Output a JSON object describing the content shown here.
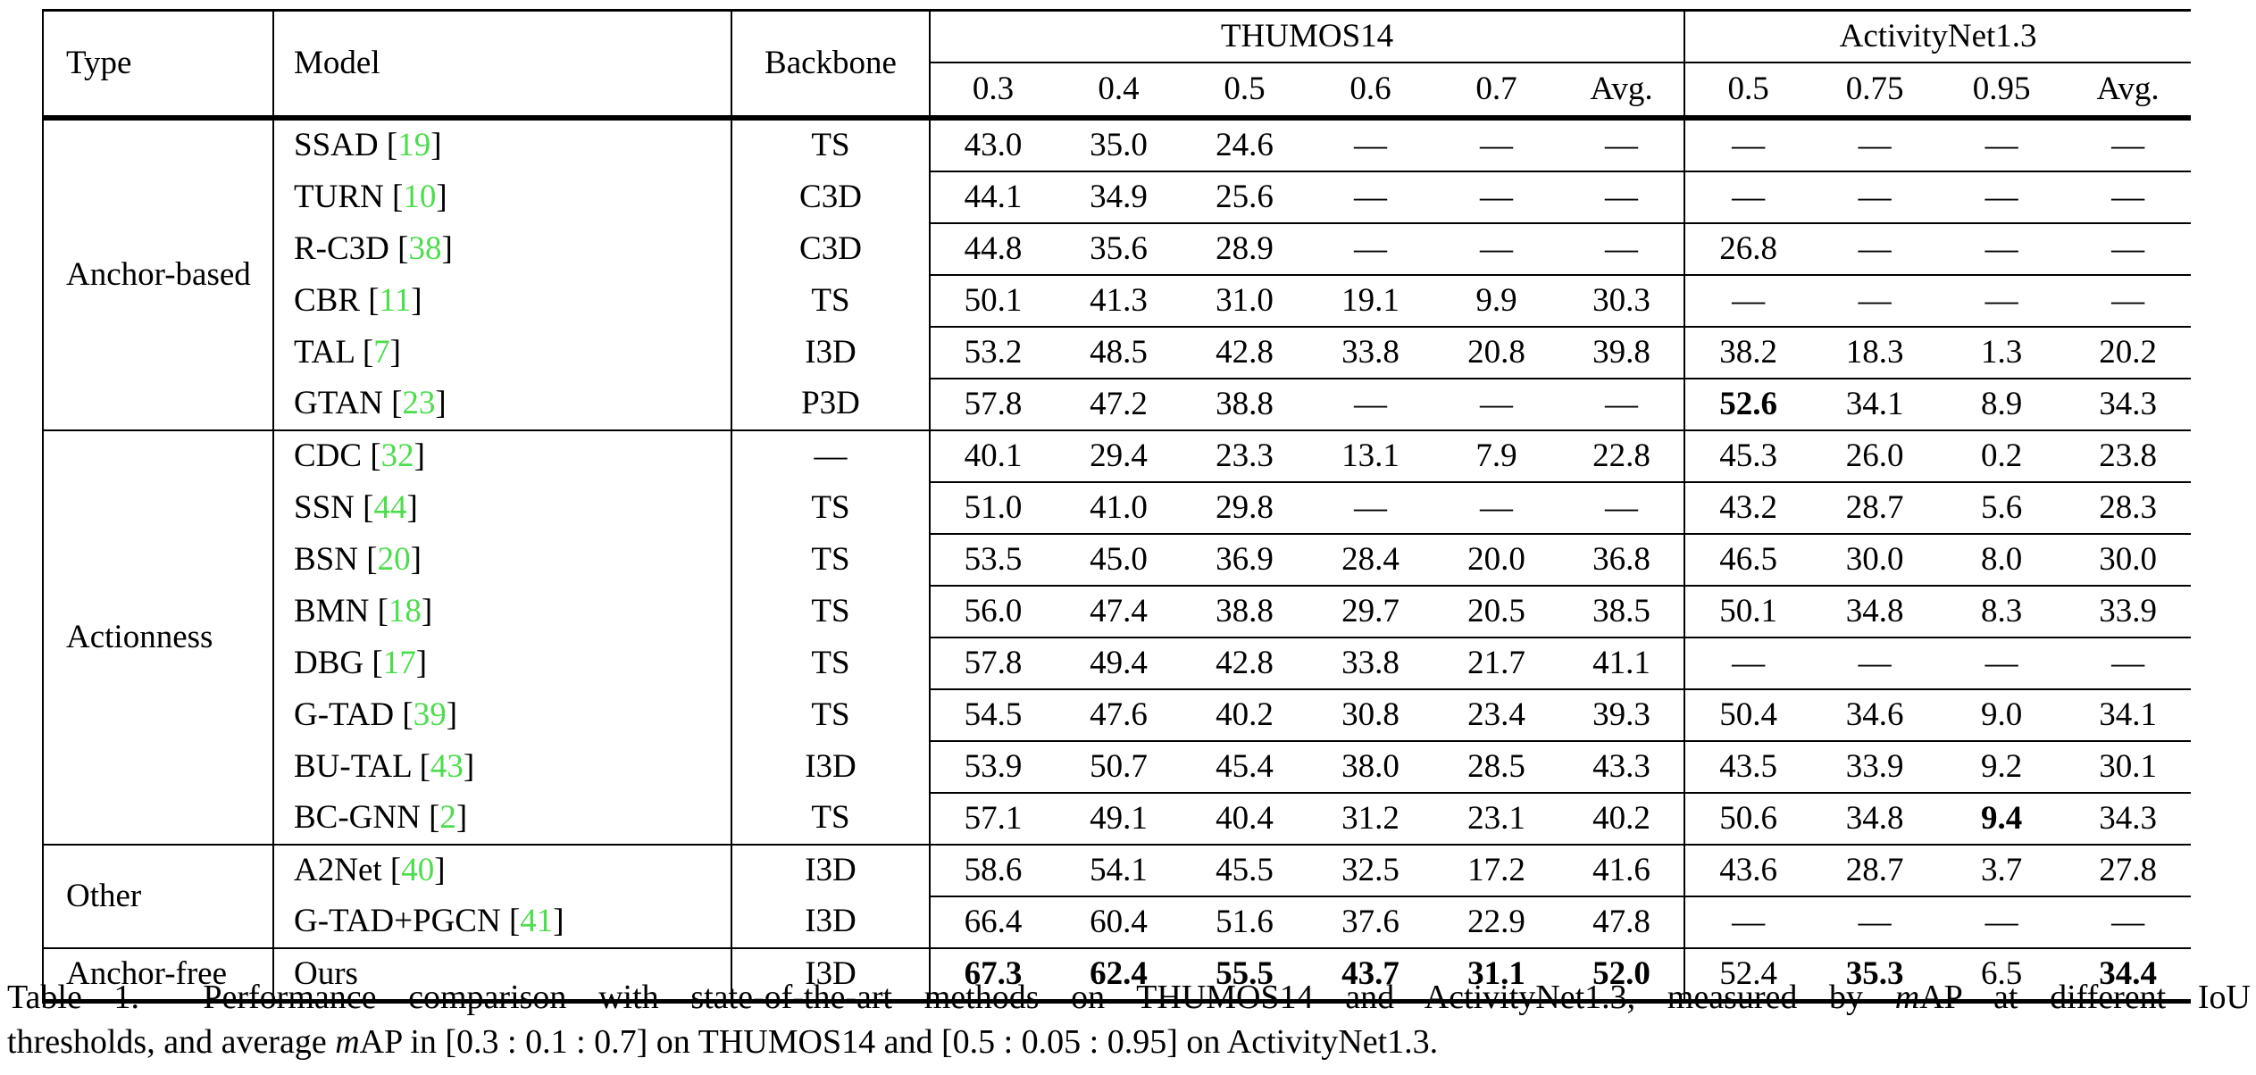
{
  "table": {
    "headers": {
      "type": "Type",
      "model": "Model",
      "backbone": "Backbone",
      "group1": "THUMOS14",
      "group2": "ActivityNet1.3",
      "thumos_cols": [
        "0.3",
        "0.4",
        "0.5",
        "0.6",
        "0.7",
        "Avg."
      ],
      "anet_cols": [
        "0.5",
        "0.75",
        "0.95",
        "Avg."
      ]
    },
    "sections": [
      {
        "type": "Anchor-based",
        "rows": [
          {
            "model": "SSAD",
            "cite": "19",
            "backbone": "TS",
            "thumos": [
              "43.0",
              "35.0",
              "24.6",
              "—",
              "—",
              "—"
            ],
            "anet": [
              "—",
              "—",
              "—",
              "—"
            ]
          },
          {
            "model": "TURN",
            "cite": "10",
            "backbone": "C3D",
            "thumos": [
              "44.1",
              "34.9",
              "25.6",
              "—",
              "—",
              "—"
            ],
            "anet": [
              "—",
              "—",
              "—",
              "—"
            ]
          },
          {
            "model": "R-C3D",
            "cite": "38",
            "backbone": "C3D",
            "thumos": [
              "44.8",
              "35.6",
              "28.9",
              "—",
              "—",
              "—"
            ],
            "anet": [
              "26.8",
              "—",
              "—",
              "—"
            ]
          },
          {
            "model": "CBR",
            "cite": "11",
            "backbone": "TS",
            "thumos": [
              "50.1",
              "41.3",
              "31.0",
              "19.1",
              "9.9",
              "30.3"
            ],
            "anet": [
              "—",
              "—",
              "—",
              "—"
            ]
          },
          {
            "model": "TAL",
            "cite": "7",
            "backbone": "I3D",
            "thumos": [
              "53.2",
              "48.5",
              "42.8",
              "33.8",
              "20.8",
              "39.8"
            ],
            "anet": [
              "38.2",
              "18.3",
              "1.3",
              "20.2"
            ]
          },
          {
            "model": "GTAN",
            "cite": "23",
            "backbone": "P3D",
            "thumos": [
              "57.8",
              "47.2",
              "38.8",
              "—",
              "—",
              "—"
            ],
            "anet": [
              {
                "v": "52.6",
                "b": true
              },
              "34.1",
              "8.9",
              "34.3"
            ]
          }
        ]
      },
      {
        "type": "Actionness",
        "rows": [
          {
            "model": "CDC",
            "cite": "32",
            "backbone": "—",
            "thumos": [
              "40.1",
              "29.4",
              "23.3",
              "13.1",
              "7.9",
              "22.8"
            ],
            "anet": [
              "45.3",
              "26.0",
              "0.2",
              "23.8"
            ]
          },
          {
            "model": "SSN",
            "cite": "44",
            "backbone": "TS",
            "thumos": [
              "51.0",
              "41.0",
              "29.8",
              "—",
              "—",
              "—"
            ],
            "anet": [
              "43.2",
              "28.7",
              "5.6",
              "28.3"
            ]
          },
          {
            "model": "BSN",
            "cite": "20",
            "backbone": "TS",
            "thumos": [
              "53.5",
              "45.0",
              "36.9",
              "28.4",
              "20.0",
              "36.8"
            ],
            "anet": [
              "46.5",
              "30.0",
              "8.0",
              "30.0"
            ]
          },
          {
            "model": "BMN",
            "cite": "18",
            "backbone": "TS",
            "thumos": [
              "56.0",
              "47.4",
              "38.8",
              "29.7",
              "20.5",
              "38.5"
            ],
            "anet": [
              "50.1",
              "34.8",
              "8.3",
              "33.9"
            ]
          },
          {
            "model": "DBG",
            "cite": "17",
            "backbone": "TS",
            "thumos": [
              "57.8",
              "49.4",
              "42.8",
              "33.8",
              "21.7",
              "41.1"
            ],
            "anet": [
              "—",
              "—",
              "—",
              "—"
            ]
          },
          {
            "model": "G-TAD",
            "cite": "39",
            "backbone": "TS",
            "thumos": [
              "54.5",
              "47.6",
              "40.2",
              "30.8",
              "23.4",
              "39.3"
            ],
            "anet": [
              "50.4",
              "34.6",
              "9.0",
              "34.1"
            ]
          },
          {
            "model": "BU-TAL",
            "cite": "43",
            "backbone": "I3D",
            "thumos": [
              "53.9",
              "50.7",
              "45.4",
              "38.0",
              "28.5",
              "43.3"
            ],
            "anet": [
              "43.5",
              "33.9",
              "9.2",
              "30.1"
            ]
          },
          {
            "model": "BC-GNN",
            "cite": "2",
            "backbone": "TS",
            "thumos": [
              "57.1",
              "49.1",
              "40.4",
              "31.2",
              "23.1",
              "40.2"
            ],
            "anet": [
              "50.6",
              "34.8",
              {
                "v": "9.4",
                "b": true
              },
              "34.3"
            ]
          }
        ]
      },
      {
        "type": "Other",
        "rows": [
          {
            "model": "A2Net",
            "cite": "40",
            "backbone": "I3D",
            "thumos": [
              "58.6",
              "54.1",
              "45.5",
              "32.5",
              "17.2",
              "41.6"
            ],
            "anet": [
              "43.6",
              "28.7",
              "3.7",
              "27.8"
            ]
          },
          {
            "model": "G-TAD+PGCN",
            "cite": "41",
            "backbone": "I3D",
            "thumos": [
              "66.4",
              "60.4",
              "51.6",
              "37.6",
              "22.9",
              "47.8"
            ],
            "anet": [
              "—",
              "—",
              "—",
              "—"
            ]
          }
        ]
      },
      {
        "type": "Anchor-free",
        "rows": [
          {
            "model": "Ours",
            "cite": null,
            "backbone": "I3D",
            "thumos": [
              {
                "v": "67.3",
                "b": true
              },
              {
                "v": "62.4",
                "b": true
              },
              {
                "v": "55.5",
                "b": true
              },
              {
                "v": "43.7",
                "b": true
              },
              {
                "v": "31.1",
                "b": true
              },
              {
                "v": "52.0",
                "b": true
              }
            ],
            "anet": [
              "52.4",
              {
                "v": "35.3",
                "b": true
              },
              "6.5",
              {
                "v": "34.4",
                "b": true
              }
            ]
          }
        ]
      }
    ]
  },
  "caption": {
    "lines": [
      [
        {
          "t": "Table 1.  Performance comparison with state-of-the-art methods on THUMOS14 and ActivityNet1.3, measured by "
        },
        {
          "t": "m",
          "i": true
        },
        {
          "t": "AP at different IoU"
        }
      ],
      [
        {
          "t": "thresholds, and average "
        },
        {
          "t": "m",
          "i": true
        },
        {
          "t": "AP in [0.3 : 0.1 : 0.7] on THUMOS14 and [0.5 : 0.05 : 0.95] on ActivityNet1.3."
        }
      ]
    ]
  },
  "colors": {
    "citation_green": "#4cdd4c",
    "text": "#000000",
    "background": "#ffffff"
  }
}
